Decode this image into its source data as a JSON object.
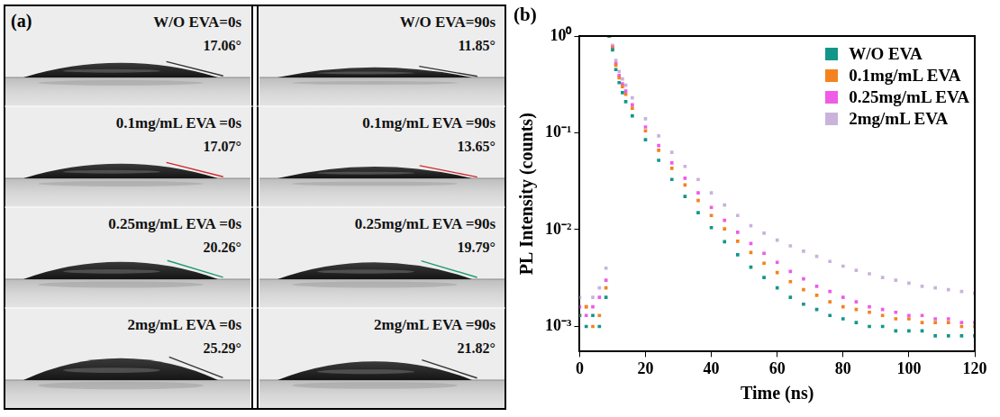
{
  "panel_a": {
    "label": "(a)",
    "columns": [
      [
        {
          "caption": "W/O EVA=0s",
          "angle": 17.06,
          "angle_label": "17.06°"
        },
        {
          "caption": "0.1mg/mL EVA =0s",
          "angle": 17.07,
          "angle_label": "17.07°"
        },
        {
          "caption": "0.25mg/mL EVA =0s",
          "angle": 20.26,
          "angle_label": "20.26°"
        },
        {
          "caption": "2mg/mL EVA =0s",
          "angle": 25.29,
          "angle_label": "25.29°"
        }
      ],
      [
        {
          "caption": "W/O EVA=90s",
          "angle": 11.85,
          "angle_label": "11.85°"
        },
        {
          "caption": "0.1mg/mL EVA =90s",
          "angle": 13.65,
          "angle_label": "13.65°"
        },
        {
          "caption": "0.25mg/mL EVA =90s",
          "angle": 19.79,
          "angle_label": "19.79°"
        },
        {
          "caption": "2mg/mL EVA =90s",
          "angle": 21.82,
          "angle_label": "21.82°"
        }
      ]
    ]
  },
  "chart_data": {
    "type": "scatter",
    "title": "(b)",
    "x_label": "Time (ns)",
    "y_label": "PL Intensity (counts)",
    "log": "y",
    "grid": false,
    "legend": "upper right",
    "marker": "square",
    "xlim": [
      0,
      120
    ],
    "xticks": [
      0,
      20,
      40,
      60,
      80,
      100,
      120
    ],
    "ylim": [
      0.00055,
      1
    ],
    "yticks": [
      {
        "value": 0.001,
        "label": "10⁻³"
      },
      {
        "value": 0.01,
        "label": "10⁻²"
      },
      {
        "value": 0.1,
        "label": "10⁻¹"
      },
      {
        "value": 1,
        "label": "10⁰"
      }
    ],
    "x": [
      0,
      2,
      4,
      6,
      8,
      9,
      10,
      11,
      12,
      13,
      14,
      16,
      20,
      24,
      28,
      32,
      36,
      40,
      44,
      48,
      52,
      56,
      60,
      64,
      68,
      72,
      76,
      80,
      84,
      88,
      92,
      96,
      100,
      104,
      108,
      112,
      116,
      120
    ],
    "series": [
      {
        "name": "W/O EVA",
        "color": "#13968a",
        "values": [
          0.0013,
          0.001,
          0.0013,
          0.001,
          0.002,
          1.0,
          0.72,
          0.45,
          0.33,
          0.26,
          0.21,
          0.15,
          0.085,
          0.052,
          0.033,
          0.022,
          0.015,
          0.0105,
          0.0075,
          0.0055,
          0.0041,
          0.0032,
          0.0025,
          0.002,
          0.0017,
          0.0015,
          0.0013,
          0.0012,
          0.0011,
          0.001,
          0.001,
          0.0009,
          0.0009,
          0.0009,
          0.0008,
          0.0008,
          0.0008,
          0.0008
        ]
      },
      {
        "name": "0.1mg/mL EVA",
        "color": "#f5821f",
        "values": [
          0.0013,
          0.0016,
          0.001,
          0.0013,
          0.0025,
          1.0,
          0.75,
          0.5,
          0.37,
          0.3,
          0.25,
          0.18,
          0.105,
          0.066,
          0.043,
          0.029,
          0.02,
          0.014,
          0.0102,
          0.0076,
          0.0058,
          0.0045,
          0.0036,
          0.0029,
          0.0024,
          0.0021,
          0.0018,
          0.0016,
          0.0015,
          0.0014,
          0.0013,
          0.0012,
          0.0012,
          0.0011,
          0.0011,
          0.0011,
          0.001,
          0.001
        ]
      },
      {
        "name": "0.25mg/mL EVA",
        "color": "#ee5ce8",
        "values": [
          0.0016,
          0.0013,
          0.0016,
          0.002,
          0.003,
          1.0,
          0.77,
          0.52,
          0.39,
          0.32,
          0.27,
          0.195,
          0.115,
          0.074,
          0.049,
          0.034,
          0.024,
          0.017,
          0.0125,
          0.0094,
          0.0072,
          0.0057,
          0.0046,
          0.0037,
          0.0031,
          0.0026,
          0.0023,
          0.002,
          0.0018,
          0.0016,
          0.0015,
          0.0014,
          0.0013,
          0.0013,
          0.0012,
          0.0012,
          0.0011,
          0.0011
        ]
      },
      {
        "name": "2mg/mL EVA",
        "color": "#c9b3db",
        "values": [
          0.002,
          0.0016,
          0.002,
          0.0025,
          0.004,
          1.0,
          0.8,
          0.56,
          0.43,
          0.36,
          0.31,
          0.23,
          0.14,
          0.093,
          0.063,
          0.045,
          0.033,
          0.024,
          0.018,
          0.014,
          0.011,
          0.0092,
          0.0078,
          0.0068,
          0.006,
          0.0053,
          0.0047,
          0.0042,
          0.0038,
          0.0035,
          0.0032,
          0.003,
          0.0028,
          0.0026,
          0.0025,
          0.0024,
          0.0023,
          0.0022
        ]
      }
    ]
  }
}
